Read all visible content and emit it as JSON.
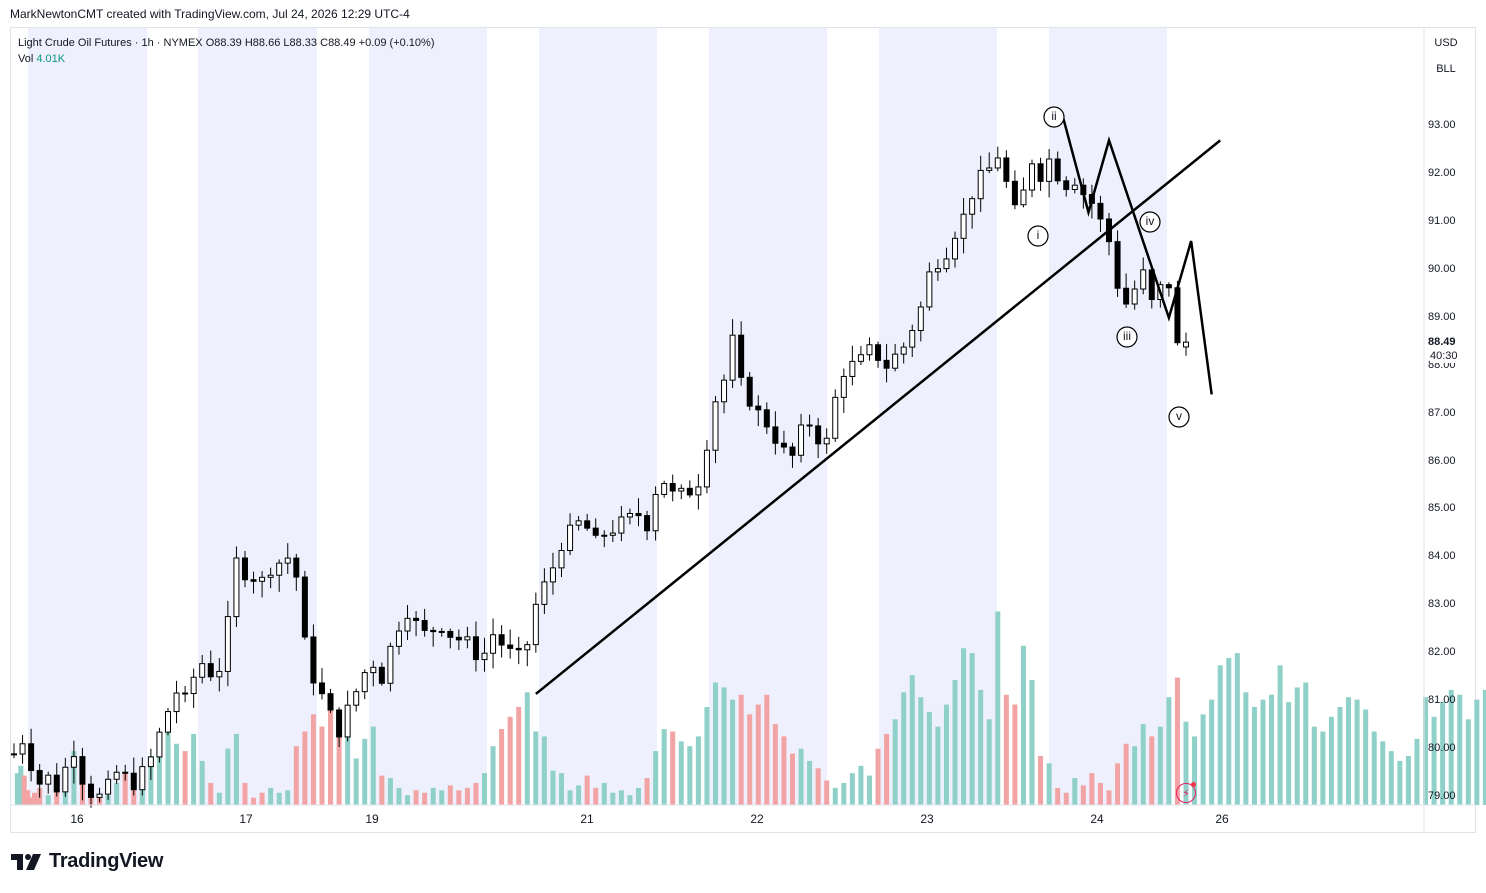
{
  "header": {
    "attribution": "MarkNewtonCMT created with TradingView.com, Jul 24, 2026 12:29 UTC-4"
  },
  "legend": {
    "symbol": "Light Crude Oil Futures · 1h · NYMEX",
    "open_label": "O",
    "open": "88.39",
    "high_label": "H",
    "high": "88.66",
    "low_label": "L",
    "low": "88.33",
    "close_label": "C",
    "close": "88.49",
    "change": "+0.09 (+0.10%)",
    "vol_label": "Vol",
    "vol": "4.01K"
  },
  "scale": {
    "currency": "USD",
    "unit": "BLL"
  },
  "last_price": {
    "value": "88.49",
    "countdown": "40:30"
  },
  "wave_labels": [
    "i",
    "ii",
    "iii",
    "iv",
    "v"
  ],
  "colors": {
    "up_volume": "#8fd1c8",
    "down_volume": "#f2a3a3",
    "session_band": "#eef1fd",
    "candle": "#000000",
    "flash": "#e91e63"
  },
  "icons": {
    "flash": "flash-icon"
  },
  "branding": {
    "name": "TradingView"
  },
  "chart_data": {
    "type": "candlestick",
    "title": "Light Crude Oil Futures · 1h · NYMEX",
    "y_ticks": [
      "93.00",
      "92.00",
      "91.00",
      "90.00",
      "89.00",
      "88.00",
      "87.00",
      "86.00",
      "85.00",
      "84.00",
      "83.00",
      "82.00",
      "81.00",
      "80.00",
      "79.00"
    ],
    "ylim": [
      78.85,
      93.95
    ],
    "x_ticks": [
      "16",
      "17",
      "19",
      "21",
      "22",
      "23",
      "24",
      "26"
    ],
    "grid": false,
    "series": [
      {
        "name": "Vol",
        "type": "volume_histogram",
        "last_value": "4.01K"
      }
    ],
    "close_path": [
      [
        0,
        79.9
      ],
      [
        5,
        80.2
      ],
      [
        10,
        79.7
      ],
      [
        15,
        79.3
      ],
      [
        20,
        79.4
      ],
      [
        25,
        79.2
      ],
      [
        30,
        79.6
      ],
      [
        35,
        80.0
      ],
      [
        40,
        79.4
      ],
      [
        45,
        79.1
      ],
      [
        50,
        79.0
      ],
      [
        55,
        79.2
      ],
      [
        60,
        79.5
      ],
      [
        65,
        79.4
      ],
      [
        70,
        79.3
      ],
      [
        75,
        79.5
      ],
      [
        80,
        79.8
      ],
      [
        85,
        80.3
      ],
      [
        90,
        80.8
      ],
      [
        95,
        81.2
      ],
      [
        100,
        81.0
      ],
      [
        105,
        81.5
      ],
      [
        110,
        81.8
      ],
      [
        115,
        81.6
      ],
      [
        120,
        81.7
      ],
      [
        125,
        82.6
      ],
      [
        130,
        83.9
      ],
      [
        135,
        83.7
      ],
      [
        140,
        83.6
      ],
      [
        145,
        83.5
      ],
      [
        150,
        83.8
      ],
      [
        155,
        83.9
      ],
      [
        160,
        84.0
      ],
      [
        165,
        83.6
      ],
      [
        170,
        82.2
      ],
      [
        175,
        81.5
      ],
      [
        180,
        81.1
      ],
      [
        185,
        80.7
      ],
      [
        190,
        80.4
      ],
      [
        195,
        80.8
      ],
      [
        200,
        81.2
      ],
      [
        205,
        81.6
      ],
      [
        210,
        81.8
      ],
      [
        215,
        81.5
      ],
      [
        220,
        82.1
      ],
      [
        225,
        82.6
      ],
      [
        230,
        82.9
      ],
      [
        235,
        82.6
      ],
      [
        240,
        82.4
      ],
      [
        245,
        82.5
      ],
      [
        250,
        82.6
      ],
      [
        255,
        82.4
      ],
      [
        260,
        82.3
      ],
      [
        265,
        82.2
      ],
      [
        270,
        82.0
      ],
      [
        275,
        82.0
      ],
      [
        280,
        82.4
      ],
      [
        285,
        82.2
      ],
      [
        290,
        82.0
      ],
      [
        295,
        81.9
      ],
      [
        300,
        82.2
      ],
      [
        305,
        83.0
      ],
      [
        310,
        83.4
      ],
      [
        315,
        83.8
      ],
      [
        320,
        84.3
      ],
      [
        325,
        84.5
      ],
      [
        330,
        84.7
      ],
      [
        335,
        84.6
      ],
      [
        340,
        84.3
      ],
      [
        345,
        84.5
      ],
      [
        350,
        84.6
      ],
      [
        355,
        84.7
      ],
      [
        360,
        84.8
      ],
      [
        365,
        84.9
      ],
      [
        370,
        84.7
      ],
      [
        375,
        85.4
      ],
      [
        380,
        85.6
      ],
      [
        385,
        85.3
      ],
      [
        390,
        85.3
      ],
      [
        395,
        85.4
      ],
      [
        400,
        85.6
      ],
      [
        405,
        86.4
      ],
      [
        410,
        87.3
      ],
      [
        415,
        87.7
      ],
      [
        420,
        88.5
      ],
      [
        425,
        87.6
      ],
      [
        430,
        87.3
      ],
      [
        435,
        87.0
      ],
      [
        440,
        86.8
      ],
      [
        445,
        86.5
      ],
      [
        450,
        86.2
      ],
      [
        455,
        86.1
      ],
      [
        460,
        86.6
      ],
      [
        465,
        86.8
      ],
      [
        470,
        86.5
      ],
      [
        475,
        86.4
      ],
      [
        480,
        87.3
      ],
      [
        485,
        87.9
      ],
      [
        490,
        88.0
      ],
      [
        495,
        88.1
      ],
      [
        500,
        88.3
      ],
      [
        505,
        88.2
      ],
      [
        510,
        88.0
      ],
      [
        515,
        88.2
      ],
      [
        520,
        88.4
      ],
      [
        525,
        88.8
      ],
      [
        530,
        89.2
      ],
      [
        535,
        89.9
      ],
      [
        540,
        90.2
      ],
      [
        545,
        90.4
      ],
      [
        550,
        90.8
      ],
      [
        555,
        91.1
      ],
      [
        560,
        91.6
      ],
      [
        565,
        91.9
      ],
      [
        570,
        92.1
      ],
      [
        575,
        92.4
      ],
      [
        580,
        91.8
      ],
      [
        585,
        91.2
      ],
      [
        590,
        91.6
      ],
      [
        595,
        92.3
      ],
      [
        600,
        92.0
      ],
      [
        605,
        92.3
      ],
      [
        610,
        92.0
      ],
      [
        615,
        91.8
      ],
      [
        620,
        91.9
      ],
      [
        625,
        91.6
      ],
      [
        630,
        91.4
      ],
      [
        635,
        91.0
      ],
      [
        640,
        90.6
      ],
      [
        645,
        89.7
      ],
      [
        650,
        89.3
      ],
      [
        655,
        89.6
      ],
      [
        660,
        89.9
      ],
      [
        665,
        89.3
      ],
      [
        670,
        89.6
      ],
      [
        675,
        89.7
      ],
      [
        680,
        88.4
      ],
      [
        685,
        88.5
      ]
    ],
    "trendline": {
      "from": [
        305,
        81.15
      ],
      "to": [
        705,
        92.7
      ]
    },
    "elliott_wave": {
      "points": [
        [
          613,
          93.2
        ],
        [
          628,
          91.2
        ],
        [
          640,
          92.7
        ],
        [
          675,
          89.0
        ],
        [
          688,
          90.6
        ],
        [
          700,
          87.4
        ]
      ],
      "labels": [
        "i",
        "ii",
        "iii",
        "iv",
        "v"
      ]
    },
    "volume_profile": [
      [
        2,
        1.3
      ],
      [
        4,
        1.6
      ],
      [
        6,
        1.2
      ],
      [
        8,
        0.6
      ],
      [
        10,
        0.3
      ],
      [
        12,
        0.5
      ],
      [
        15,
        0.7
      ],
      [
        20,
        0.4
      ],
      [
        25,
        1.0
      ],
      [
        30,
        1.3
      ],
      [
        35,
        2.2
      ],
      [
        40,
        1.1
      ],
      [
        45,
        0.5
      ],
      [
        50,
        0.3
      ],
      [
        55,
        0.4
      ],
      [
        60,
        0.9
      ],
      [
        65,
        1.3
      ],
      [
        70,
        1.2
      ],
      [
        75,
        1.4
      ],
      [
        80,
        2.0
      ],
      [
        85,
        2.7
      ],
      [
        90,
        3.2
      ],
      [
        95,
        2.5
      ],
      [
        100,
        2.2
      ],
      [
        105,
        2.9
      ],
      [
        110,
        1.8
      ],
      [
        115,
        0.9
      ],
      [
        120,
        0.5
      ],
      [
        125,
        2.3
      ],
      [
        130,
        2.9
      ],
      [
        135,
        0.9
      ],
      [
        140,
        0.3
      ],
      [
        145,
        0.5
      ],
      [
        150,
        0.7
      ],
      [
        155,
        0.5
      ],
      [
        160,
        0.6
      ],
      [
        165,
        2.4
      ],
      [
        170,
        3.0
      ],
      [
        175,
        3.7
      ],
      [
        180,
        3.2
      ],
      [
        185,
        3.9
      ],
      [
        190,
        3.4
      ],
      [
        195,
        2.9
      ],
      [
        200,
        1.9
      ],
      [
        205,
        2.7
      ],
      [
        210,
        3.2
      ],
      [
        215,
        1.2
      ],
      [
        220,
        1.1
      ],
      [
        225,
        0.7
      ],
      [
        230,
        0.4
      ],
      [
        235,
        0.6
      ],
      [
        240,
        0.5
      ],
      [
        245,
        0.7
      ],
      [
        250,
        0.6
      ],
      [
        255,
        0.8
      ],
      [
        260,
        0.6
      ],
      [
        265,
        0.7
      ],
      [
        270,
        0.9
      ],
      [
        275,
        1.3
      ],
      [
        280,
        2.4
      ],
      [
        285,
        3.1
      ],
      [
        290,
        3.6
      ],
      [
        295,
        4.0
      ],
      [
        300,
        4.6
      ],
      [
        305,
        3.0
      ],
      [
        310,
        2.8
      ],
      [
        315,
        1.4
      ],
      [
        320,
        1.3
      ],
      [
        325,
        0.6
      ],
      [
        330,
        0.8
      ],
      [
        335,
        1.2
      ],
      [
        340,
        0.7
      ],
      [
        345,
        0.9
      ],
      [
        350,
        0.5
      ],
      [
        355,
        0.6
      ],
      [
        360,
        0.4
      ],
      [
        365,
        0.7
      ],
      [
        370,
        1.1
      ],
      [
        375,
        2.2
      ],
      [
        380,
        3.1
      ],
      [
        385,
        3.0
      ],
      [
        390,
        2.6
      ],
      [
        395,
        2.4
      ],
      [
        400,
        2.8
      ],
      [
        405,
        4.0
      ],
      [
        410,
        5.0
      ],
      [
        415,
        4.8
      ],
      [
        420,
        4.3
      ],
      [
        425,
        4.5
      ],
      [
        430,
        3.7
      ],
      [
        435,
        4.1
      ],
      [
        440,
        4.5
      ],
      [
        445,
        3.3
      ],
      [
        450,
        2.8
      ],
      [
        455,
        2.1
      ],
      [
        460,
        2.3
      ],
      [
        465,
        1.8
      ],
      [
        470,
        1.5
      ],
      [
        475,
        1.0
      ],
      [
        480,
        0.7
      ],
      [
        485,
        0.9
      ],
      [
        490,
        1.3
      ],
      [
        495,
        1.6
      ],
      [
        500,
        1.2
      ],
      [
        505,
        2.3
      ],
      [
        510,
        2.9
      ],
      [
        515,
        3.5
      ],
      [
        520,
        4.6
      ],
      [
        525,
        5.3
      ],
      [
        530,
        4.4
      ],
      [
        535,
        3.8
      ],
      [
        540,
        3.2
      ],
      [
        545,
        4.1
      ],
      [
        550,
        5.1
      ],
      [
        555,
        6.4
      ],
      [
        560,
        6.2
      ],
      [
        565,
        4.7
      ],
      [
        570,
        3.5
      ],
      [
        575,
        7.9
      ],
      [
        580,
        4.5
      ],
      [
        585,
        4.1
      ],
      [
        590,
        6.5
      ],
      [
        595,
        5.1
      ],
      [
        600,
        2.0
      ],
      [
        605,
        1.7
      ],
      [
        610,
        0.7
      ],
      [
        615,
        0.5
      ],
      [
        620,
        1.1
      ],
      [
        625,
        0.8
      ],
      [
        630,
        1.3
      ],
      [
        635,
        0.9
      ],
      [
        640,
        0.6
      ],
      [
        645,
        1.7
      ],
      [
        650,
        2.5
      ],
      [
        655,
        2.4
      ],
      [
        660,
        3.3
      ],
      [
        665,
        2.8
      ],
      [
        670,
        3.2
      ],
      [
        675,
        4.4
      ],
      [
        680,
        5.2
      ],
      [
        685,
        3.4
      ],
      [
        690,
        2.8
      ],
      [
        695,
        3.7
      ],
      [
        700,
        4.3
      ],
      [
        705,
        5.7
      ],
      [
        710,
        6.0
      ],
      [
        715,
        6.2
      ],
      [
        720,
        4.6
      ],
      [
        725,
        4.0
      ],
      [
        730,
        4.3
      ],
      [
        735,
        4.5
      ],
      [
        740,
        5.7
      ],
      [
        745,
        4.2
      ],
      [
        750,
        4.8
      ],
      [
        755,
        5.0
      ],
      [
        760,
        3.2
      ],
      [
        765,
        3.0
      ],
      [
        770,
        3.6
      ],
      [
        775,
        4.0
      ],
      [
        780,
        4.4
      ],
      [
        785,
        4.3
      ],
      [
        790,
        3.9
      ],
      [
        795,
        3.0
      ],
      [
        800,
        2.6
      ],
      [
        805,
        2.2
      ],
      [
        810,
        1.8
      ],
      [
        815,
        2.0
      ],
      [
        820,
        2.7
      ],
      [
        825,
        4.4
      ],
      [
        830,
        3.6
      ],
      [
        835,
        4.2
      ],
      [
        840,
        4.7
      ],
      [
        845,
        4.5
      ],
      [
        850,
        3.5
      ],
      [
        855,
        4.3
      ],
      [
        860,
        4.7
      ],
      [
        865,
        3.7
      ],
      [
        870,
        3.6
      ],
      [
        875,
        4.5
      ],
      [
        880,
        4.1
      ],
      [
        885,
        5.6
      ],
      [
        890,
        5.0
      ],
      [
        895,
        3.9
      ],
      [
        900,
        3.2
      ],
      [
        905,
        4.0
      ],
      [
        910,
        5.2
      ],
      [
        915,
        6.1
      ],
      [
        920,
        7.8
      ],
      [
        925,
        4.0
      ]
    ]
  }
}
